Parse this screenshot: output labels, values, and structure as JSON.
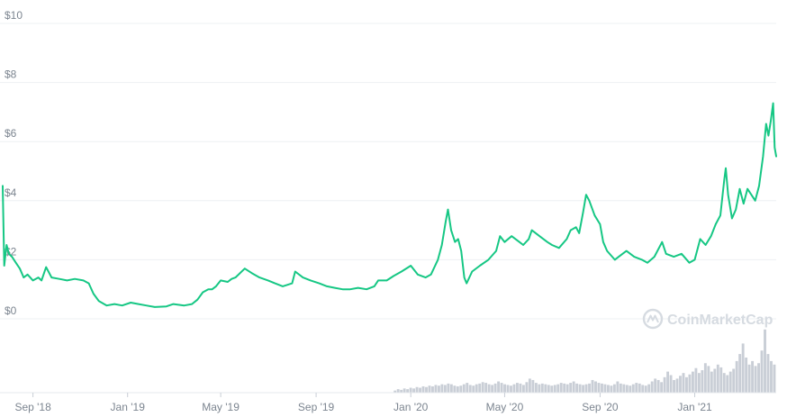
{
  "chart_data": {
    "type": "line",
    "title": "",
    "xlabel": "",
    "ylabel": "",
    "y_ticks": [
      "$10",
      "$8",
      "$6",
      "$4",
      "$2",
      "$0"
    ],
    "ylim": [
      0,
      10
    ],
    "x_ticks": [
      {
        "label": "Sep '18",
        "date": "2018-09-01"
      },
      {
        "label": "Jan '19",
        "date": "2019-01-01"
      },
      {
        "label": "May '19",
        "date": "2019-05-01"
      },
      {
        "label": "Sep '19",
        "date": "2019-09-01"
      },
      {
        "label": "Jan '20",
        "date": "2020-01-01"
      },
      {
        "label": "May '20",
        "date": "2020-05-01"
      },
      {
        "label": "Sep '20",
        "date": "2020-09-01"
      },
      {
        "label": "Jan '21",
        "date": "2021-01-01"
      }
    ],
    "xlim": [
      "2018-07-24",
      "2021-04-16"
    ],
    "grid": true,
    "series": [
      {
        "color": "#16c784",
        "points": [
          [
            "2018-07-24",
            4.5
          ],
          [
            "2018-07-26",
            1.8
          ],
          [
            "2018-07-29",
            2.5
          ],
          [
            "2018-08-01",
            2.2
          ],
          [
            "2018-08-05",
            2.1
          ],
          [
            "2018-08-10",
            1.9
          ],
          [
            "2018-08-15",
            1.7
          ],
          [
            "2018-08-20",
            1.4
          ],
          [
            "2018-08-25",
            1.5
          ],
          [
            "2018-09-01",
            1.3
          ],
          [
            "2018-09-08",
            1.4
          ],
          [
            "2018-09-12",
            1.3
          ],
          [
            "2018-09-18",
            1.75
          ],
          [
            "2018-09-25",
            1.4
          ],
          [
            "2018-10-05",
            1.35
          ],
          [
            "2018-10-15",
            1.3
          ],
          [
            "2018-10-25",
            1.35
          ],
          [
            "2018-11-05",
            1.3
          ],
          [
            "2018-11-12",
            1.2
          ],
          [
            "2018-11-18",
            0.85
          ],
          [
            "2018-11-25",
            0.6
          ],
          [
            "2018-12-05",
            0.45
          ],
          [
            "2018-12-15",
            0.5
          ],
          [
            "2018-12-25",
            0.45
          ],
          [
            "2019-01-05",
            0.55
          ],
          [
            "2019-01-15",
            0.5
          ],
          [
            "2019-01-25",
            0.45
          ],
          [
            "2019-02-05",
            0.4
          ],
          [
            "2019-02-20",
            0.42
          ],
          [
            "2019-03-01",
            0.5
          ],
          [
            "2019-03-15",
            0.45
          ],
          [
            "2019-03-25",
            0.5
          ],
          [
            "2019-04-01",
            0.65
          ],
          [
            "2019-04-08",
            0.9
          ],
          [
            "2019-04-15",
            1.0
          ],
          [
            "2019-04-20",
            1.0
          ],
          [
            "2019-04-25",
            1.1
          ],
          [
            "2019-05-01",
            1.3
          ],
          [
            "2019-05-10",
            1.25
          ],
          [
            "2019-05-15",
            1.35
          ],
          [
            "2019-05-20",
            1.4
          ],
          [
            "2019-06-01",
            1.7
          ],
          [
            "2019-06-10",
            1.55
          ],
          [
            "2019-06-20",
            1.4
          ],
          [
            "2019-07-01",
            1.3
          ],
          [
            "2019-07-10",
            1.2
          ],
          [
            "2019-07-20",
            1.1
          ],
          [
            "2019-08-01",
            1.2
          ],
          [
            "2019-08-05",
            1.6
          ],
          [
            "2019-08-15",
            1.4
          ],
          [
            "2019-08-25",
            1.3
          ],
          [
            "2019-09-05",
            1.2
          ],
          [
            "2019-09-15",
            1.1
          ],
          [
            "2019-09-25",
            1.05
          ],
          [
            "2019-10-05",
            1.0
          ],
          [
            "2019-10-15",
            1.0
          ],
          [
            "2019-10-25",
            1.05
          ],
          [
            "2019-11-05",
            1.0
          ],
          [
            "2019-11-15",
            1.1
          ],
          [
            "2019-11-20",
            1.3
          ],
          [
            "2019-12-01",
            1.3
          ],
          [
            "2019-12-10",
            1.45
          ],
          [
            "2019-12-20",
            1.6
          ],
          [
            "2020-01-01",
            1.8
          ],
          [
            "2020-01-10",
            1.5
          ],
          [
            "2020-01-20",
            1.4
          ],
          [
            "2020-01-27",
            1.5
          ],
          [
            "2020-02-05",
            2.0
          ],
          [
            "2020-02-10",
            2.5
          ],
          [
            "2020-02-15",
            3.3
          ],
          [
            "2020-02-18",
            3.7
          ],
          [
            "2020-02-22",
            3.0
          ],
          [
            "2020-02-27",
            2.6
          ],
          [
            "2020-03-02",
            2.7
          ],
          [
            "2020-03-06",
            2.3
          ],
          [
            "2020-03-10",
            1.4
          ],
          [
            "2020-03-13",
            1.2
          ],
          [
            "2020-03-20",
            1.6
          ],
          [
            "2020-03-30",
            1.8
          ],
          [
            "2020-04-10",
            2.0
          ],
          [
            "2020-04-20",
            2.3
          ],
          [
            "2020-04-25",
            2.8
          ],
          [
            "2020-05-01",
            2.6
          ],
          [
            "2020-05-10",
            2.8
          ],
          [
            "2020-05-20",
            2.6
          ],
          [
            "2020-05-25",
            2.5
          ],
          [
            "2020-06-01",
            2.7
          ],
          [
            "2020-06-05",
            3.0
          ],
          [
            "2020-06-15",
            2.8
          ],
          [
            "2020-06-25",
            2.6
          ],
          [
            "2020-07-01",
            2.5
          ],
          [
            "2020-07-10",
            2.4
          ],
          [
            "2020-07-20",
            2.7
          ],
          [
            "2020-07-25",
            3.0
          ],
          [
            "2020-08-01",
            3.1
          ],
          [
            "2020-08-05",
            2.9
          ],
          [
            "2020-08-10",
            3.6
          ],
          [
            "2020-08-14",
            4.2
          ],
          [
            "2020-08-18",
            4.0
          ],
          [
            "2020-08-25",
            3.5
          ],
          [
            "2020-09-01",
            3.2
          ],
          [
            "2020-09-05",
            2.6
          ],
          [
            "2020-09-10",
            2.3
          ],
          [
            "2020-09-20",
            2.0
          ],
          [
            "2020-09-25",
            2.1
          ],
          [
            "2020-10-05",
            2.3
          ],
          [
            "2020-10-15",
            2.1
          ],
          [
            "2020-10-25",
            2.0
          ],
          [
            "2020-11-01",
            1.9
          ],
          [
            "2020-11-10",
            2.1
          ],
          [
            "2020-11-20",
            2.6
          ],
          [
            "2020-11-25",
            2.2
          ],
          [
            "2020-12-05",
            2.1
          ],
          [
            "2020-12-15",
            2.2
          ],
          [
            "2020-12-25",
            1.9
          ],
          [
            "2021-01-01",
            2.0
          ],
          [
            "2021-01-08",
            2.7
          ],
          [
            "2021-01-15",
            2.5
          ],
          [
            "2021-01-22",
            2.8
          ],
          [
            "2021-01-28",
            3.2
          ],
          [
            "2021-02-03",
            3.5
          ],
          [
            "2021-02-08",
            4.7
          ],
          [
            "2021-02-10",
            5.1
          ],
          [
            "2021-02-13",
            4.2
          ],
          [
            "2021-02-18",
            3.4
          ],
          [
            "2021-02-23",
            3.7
          ],
          [
            "2021-02-28",
            4.4
          ],
          [
            "2021-03-05",
            3.9
          ],
          [
            "2021-03-10",
            4.4
          ],
          [
            "2021-03-15",
            4.2
          ],
          [
            "2021-03-20",
            4.0
          ],
          [
            "2021-03-25",
            4.5
          ],
          [
            "2021-03-30",
            5.5
          ],
          [
            "2021-04-03",
            6.6
          ],
          [
            "2021-04-06",
            6.2
          ],
          [
            "2021-04-09",
            6.7
          ],
          [
            "2021-04-12",
            7.3
          ],
          [
            "2021-04-14",
            5.8
          ],
          [
            "2021-04-16",
            5.5
          ]
        ]
      }
    ],
    "volume": {
      "color": "#c9ced6",
      "start": "2019-12-10",
      "bars": [
        0.03,
        0.05,
        0.04,
        0.06,
        0.05,
        0.07,
        0.06,
        0.08,
        0.07,
        0.09,
        0.08,
        0.1,
        0.09,
        0.11,
        0.1,
        0.12,
        0.11,
        0.13,
        0.12,
        0.1,
        0.09,
        0.1,
        0.12,
        0.14,
        0.11,
        0.1,
        0.12,
        0.13,
        0.15,
        0.14,
        0.12,
        0.11,
        0.13,
        0.16,
        0.14,
        0.12,
        0.11,
        0.1,
        0.12,
        0.14,
        0.13,
        0.11,
        0.15,
        0.2,
        0.18,
        0.14,
        0.12,
        0.13,
        0.12,
        0.11,
        0.1,
        0.11,
        0.12,
        0.14,
        0.13,
        0.12,
        0.14,
        0.16,
        0.13,
        0.12,
        0.11,
        0.12,
        0.13,
        0.18,
        0.16,
        0.14,
        0.13,
        0.12,
        0.11,
        0.1,
        0.12,
        0.16,
        0.13,
        0.12,
        0.11,
        0.1,
        0.12,
        0.14,
        0.13,
        0.11,
        0.1,
        0.12,
        0.16,
        0.2,
        0.18,
        0.15,
        0.22,
        0.3,
        0.25,
        0.18,
        0.2,
        0.24,
        0.28,
        0.22,
        0.26,
        0.3,
        0.35,
        0.28,
        0.32,
        0.42,
        0.38,
        0.3,
        0.34,
        0.4,
        0.36,
        0.28,
        0.25,
        0.3,
        0.34,
        0.45,
        0.55,
        0.7,
        0.5,
        0.4,
        0.45,
        0.38,
        0.42,
        0.6,
        0.9,
        0.55,
        0.45,
        0.4
      ]
    },
    "watermark": "CoinMarketCap"
  }
}
